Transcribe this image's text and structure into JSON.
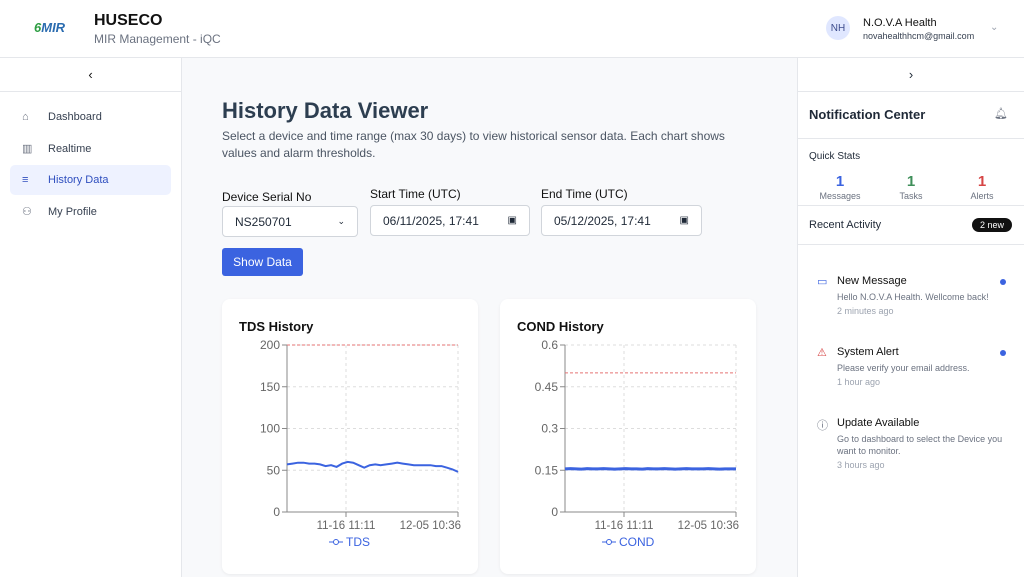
{
  "header": {
    "logo_text": "MIR",
    "title": "HUSECO",
    "subtitle": "MIR Management - iQC",
    "user": {
      "initials": "NH",
      "name": "N.O.V.A Health",
      "email": "novahealthhcm@gmail.com"
    }
  },
  "sidebar": {
    "collapse_icon": "chevron-left",
    "items": [
      {
        "label": "Dashboard",
        "icon": "home"
      },
      {
        "label": "Realtime",
        "icon": "bar-chart"
      },
      {
        "label": "History Data",
        "icon": "database",
        "active": true
      },
      {
        "label": "My Profile",
        "icon": "user"
      }
    ]
  },
  "main": {
    "title": "History Data Viewer",
    "description": "Select a device and time range (max 30 days) to view historical sensor data. Each chart shows values and alarm thresholds.",
    "device_label": "Device Serial No",
    "device_value": "NS250701",
    "start_label": "Start Time (UTC)",
    "start_value": "06/11/2025, 17:41",
    "end_label": "End Time (UTC)",
    "end_value": "05/12/2025, 17:41",
    "show_button": "Show Data"
  },
  "chart_data": [
    {
      "type": "line",
      "title": "TDS History",
      "series": [
        {
          "name": "TDS",
          "values": [
            57,
            58,
            59,
            59,
            58,
            58,
            57,
            55,
            56,
            54,
            58,
            60,
            59,
            56,
            53,
            56,
            57,
            56,
            57,
            58,
            59,
            58,
            57,
            56,
            56,
            56,
            56,
            55,
            55,
            53,
            51,
            48
          ]
        }
      ],
      "ylim": [
        0,
        200
      ],
      "yticks": [
        "0",
        "50",
        "100",
        "150",
        "200"
      ],
      "xticks": [
        "11-16 11:11",
        "12-05 10:36"
      ],
      "threshold": 200,
      "grid": true,
      "legend": "bottom",
      "color": "#3b63e0",
      "threshold_color": "#e57373"
    },
    {
      "type": "line",
      "title": "COND History",
      "series": [
        {
          "name": "COND",
          "values": [
            0.155,
            0.156,
            0.155,
            0.154,
            0.156,
            0.155,
            0.155,
            0.156,
            0.155,
            0.154,
            0.155,
            0.156,
            0.155,
            0.155,
            0.154,
            0.156,
            0.155,
            0.155,
            0.156,
            0.155,
            0.154,
            0.155,
            0.156,
            0.155,
            0.155,
            0.155,
            0.156,
            0.155,
            0.154,
            0.155,
            0.155,
            0.155
          ]
        }
      ],
      "ylim": [
        0,
        0.6
      ],
      "yticks": [
        "0",
        "0.15",
        "0.3",
        "0.45",
        "0.6"
      ],
      "xticks": [
        "11-16 11:11",
        "12-05 10:36"
      ],
      "threshold": 0.5,
      "grid": true,
      "legend": "bottom",
      "color": "#3b63e0",
      "threshold_color": "#e57373"
    }
  ],
  "notifications": {
    "title": "Notification Center",
    "quick_stats_label": "Quick Stats",
    "stats": [
      {
        "value": "1",
        "label": "Messages",
        "color": "#3b63e0"
      },
      {
        "value": "1",
        "label": "Tasks",
        "color": "#3f8f5a"
      },
      {
        "value": "1",
        "label": "Alerts",
        "color": "#d64545"
      }
    ],
    "recent_label": "Recent Activity",
    "new_badge": "2 new",
    "activities": [
      {
        "title": "New Message",
        "message": "Hello N.O.V.A Health. Wellcome back!",
        "time": "2 minutes ago",
        "icon": "message",
        "unread": true
      },
      {
        "title": "System Alert",
        "message": "Please verify your email address.",
        "time": "1 hour ago",
        "icon": "warning",
        "unread": true
      },
      {
        "title": "Update Available",
        "message": "Go to dashboard to select the Device you want to monitor.",
        "time": "3 hours ago",
        "icon": "info",
        "unread": false
      }
    ]
  }
}
